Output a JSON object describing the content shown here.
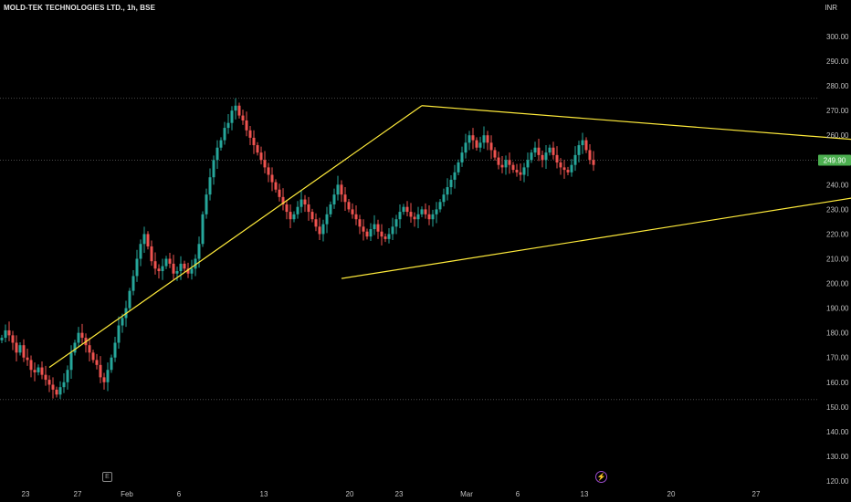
{
  "header": {
    "title": "MOLD-TEK TECHNOLOGIES LTD., 1h, BSE",
    "currency": "INR"
  },
  "price_label": "249.90",
  "badges": {
    "earnings": "E",
    "dividend": "⚡"
  },
  "colors": {
    "background": "#000000",
    "up": "#26a69a",
    "down": "#ef5350",
    "trendline": "#ffeb3b",
    "price_label_bg": "#4caf50",
    "grid": "#3a3a3a"
  },
  "chart_data": {
    "type": "candlestick",
    "symbol": "MOLD-TEK TECHNOLOGIES LTD.",
    "interval": "1h",
    "exchange": "BSE",
    "y_axis": {
      "unit": "INR",
      "ticks": [
        "120.00",
        "130.00",
        "140.00",
        "150.00",
        "160.00",
        "170.00",
        "180.00",
        "190.00",
        "200.00",
        "210.00",
        "220.00",
        "230.00",
        "240.00",
        "250.00",
        "260.00",
        "270.00",
        "280.00",
        "290.00",
        "300.00"
      ],
      "range": [
        117,
        306
      ]
    },
    "x_axis": {
      "ticks": [
        "23",
        "27",
        "Feb",
        "6",
        "13",
        "20",
        "23",
        "Mar",
        "6",
        "13",
        "20",
        "27"
      ]
    },
    "last_price": 249.9,
    "horizontal_levels": [
      275,
      153
    ],
    "trend_lines": [
      {
        "from": [
          13,
          166
        ],
        "to": [
          115,
          272
        ]
      },
      {
        "from": [
          115,
          272
        ],
        "to": [
          296,
          251
        ]
      },
      {
        "from": [
          93,
          202
        ],
        "to": [
          286,
          247
        ]
      }
    ],
    "close_series": [
      178,
      181,
      179,
      176,
      172,
      175,
      170,
      169,
      165,
      164,
      166,
      163,
      161,
      159,
      157,
      155,
      158,
      160,
      165,
      172,
      176,
      180,
      178,
      175,
      172,
      169,
      167,
      162,
      160,
      165,
      170,
      176,
      183,
      186,
      190,
      197,
      203,
      210,
      216,
      220,
      215,
      209,
      206,
      205,
      207,
      210,
      208,
      204,
      205,
      208,
      206,
      204,
      206,
      210,
      216,
      228,
      236,
      243,
      250,
      255,
      258,
      263,
      265,
      270,
      272,
      268,
      266,
      262,
      259,
      256,
      253,
      250,
      247,
      244,
      241,
      238,
      235,
      232,
      229,
      226,
      228,
      231,
      234,
      232,
      229,
      226,
      223,
      220,
      224,
      228,
      232,
      236,
      240,
      236,
      233,
      230,
      228,
      226,
      223,
      221,
      219,
      222,
      224,
      221,
      219,
      218,
      220,
      223,
      226,
      229,
      231,
      229,
      227,
      226,
      228,
      230,
      228,
      226,
      228,
      230,
      233,
      236,
      239,
      242,
      245,
      249,
      253,
      257,
      260,
      258,
      255,
      257,
      260,
      257,
      254,
      251,
      248,
      247,
      250,
      248,
      246,
      245,
      244,
      247,
      250,
      253,
      255,
      252,
      250,
      253,
      255,
      252,
      249,
      247,
      246,
      245,
      248,
      252,
      256,
      258,
      254,
      250,
      248
    ]
  }
}
